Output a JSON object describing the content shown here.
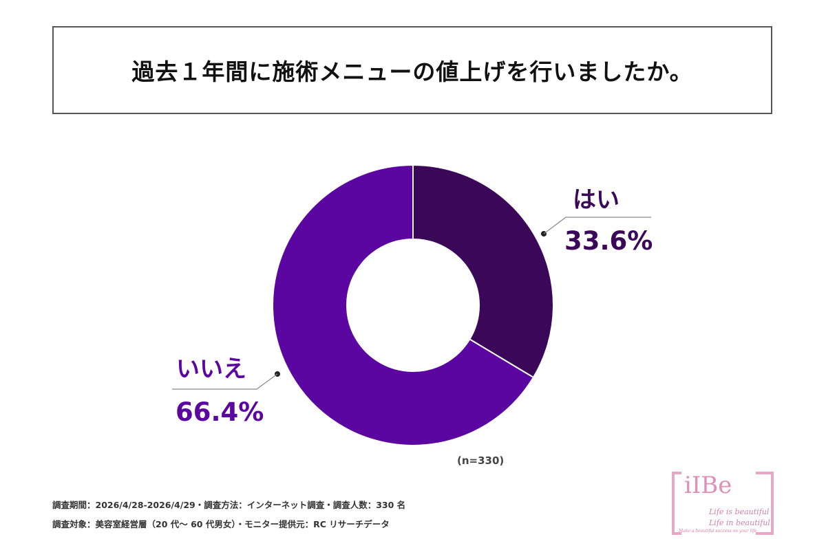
{
  "title": "過去１年間に施術メニューの値上げを行いましたか。",
  "chart_data": {
    "type": "pie",
    "donut": true,
    "categories": [
      "はい",
      "いいえ"
    ],
    "values": [
      33.6,
      66.4
    ],
    "value_labels": [
      "33.6%",
      "66.4%"
    ],
    "colors": [
      "#3b0759",
      "#5b06a0"
    ],
    "label_colors": [
      "#3b0759",
      "#5b06a0"
    ],
    "legend": "none"
  },
  "sample_size": "(n=330)",
  "footer": {
    "line1": "調査期間：2026/4/28-2026/4/29・調査方法：インターネット調査・調査人数：330 名",
    "line2": "調査対象：美容室経営層（20 代～ 60 代男女）・モニター提供元：RC リサーチデータ"
  },
  "logo": {
    "name": "iIBe",
    "tagline1": "Life is beautiful",
    "tagline2": "Life in beautiful",
    "tagline3": "Make a beautiful success on your life"
  }
}
